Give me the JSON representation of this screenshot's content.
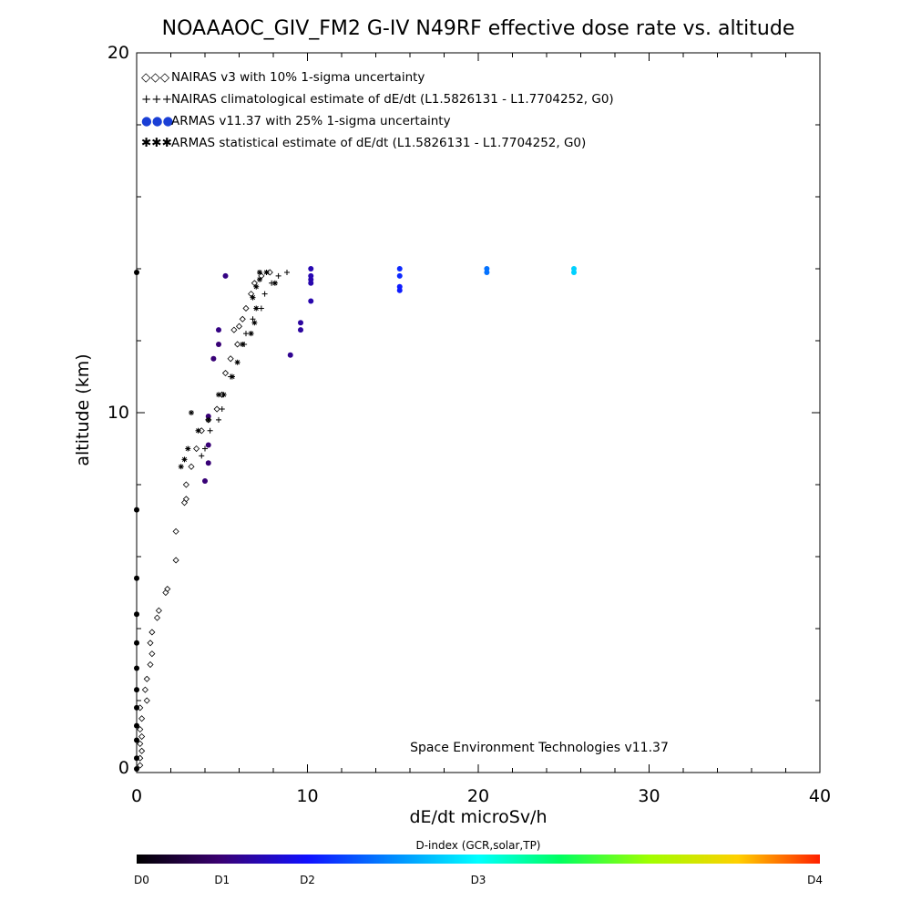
{
  "chart_data": {
    "type": "scatter",
    "title": "NOAAAOC_GIV_FM2 G-IV   N49RF  effective dose rate vs. altitude",
    "xlabel": "dE/dt microSv/h",
    "ylabel": "altitude (km)",
    "xlim": [
      0,
      40
    ],
    "ylim": [
      0,
      20
    ],
    "x_ticks": [
      "0",
      "10",
      "20",
      "30",
      "40"
    ],
    "y_ticks": [
      "0",
      "10",
      "20"
    ],
    "credit": "Space Environment Technologies v11.37",
    "legend": [
      {
        "symbol": "◇◇◇",
        "label": "NAIRAS v3 with 10% 1-sigma uncertainty"
      },
      {
        "symbol": "+++",
        "label": "NAIRAS climatological estimate of dE/dt (L1.5826131 - L1.7704252, G0)"
      },
      {
        "symbol": "●●●",
        "label": "ARMAS v11.37 with 25% 1-sigma uncertainty"
      },
      {
        "symbol": "✱✱✱",
        "label": "ARMAS statistical estimate of dE/dt (L1.5826131 - L1.7704252, G0)"
      }
    ],
    "colorbar": {
      "title": "D-index (GCR,solar,TP)",
      "labels": [
        {
          "text": "D0",
          "value": 0
        },
        {
          "text": "D1",
          "value": 0.5
        },
        {
          "text": "D2",
          "value": 1.0
        },
        {
          "text": "D3",
          "value": 2.0
        },
        {
          "text": "D4",
          "value": 4.0
        }
      ]
    },
    "series": [
      {
        "marker": "diamond",
        "points": [
          [
            0.2,
            0.2
          ],
          [
            0.2,
            0.4
          ],
          [
            0.3,
            0.6
          ],
          [
            0.2,
            0.8
          ],
          [
            0.3,
            1.0
          ],
          [
            0.2,
            1.2
          ],
          [
            0.3,
            1.5
          ],
          [
            0.2,
            1.8
          ],
          [
            0.6,
            2.0
          ],
          [
            0.5,
            2.3
          ],
          [
            0.6,
            2.6
          ],
          [
            0.8,
            3.0
          ],
          [
            0.9,
            3.3
          ],
          [
            0.8,
            3.6
          ],
          [
            0.9,
            3.9
          ],
          [
            1.2,
            4.3
          ],
          [
            1.3,
            4.5
          ],
          [
            1.7,
            5.0
          ],
          [
            1.8,
            5.1
          ],
          [
            2.3,
            5.9
          ],
          [
            2.3,
            6.7
          ],
          [
            2.8,
            7.5
          ],
          [
            2.9,
            7.6
          ],
          [
            2.9,
            8.0
          ],
          [
            3.2,
            8.5
          ],
          [
            3.5,
            9.0
          ],
          [
            3.8,
            9.5
          ],
          [
            4.2,
            9.8
          ],
          [
            4.7,
            10.1
          ],
          [
            5.0,
            10.5
          ],
          [
            5.2,
            11.1
          ],
          [
            5.5,
            11.5
          ],
          [
            5.9,
            11.9
          ],
          [
            5.7,
            12.3
          ],
          [
            6.0,
            12.4
          ],
          [
            6.2,
            12.6
          ],
          [
            6.4,
            12.9
          ],
          [
            6.7,
            13.3
          ],
          [
            6.9,
            13.6
          ],
          [
            7.3,
            13.8
          ],
          [
            7.8,
            13.9
          ]
        ]
      },
      {
        "marker": "plus",
        "points": [
          [
            3.8,
            8.8
          ],
          [
            4.0,
            9.0
          ],
          [
            4.3,
            9.5
          ],
          [
            4.8,
            9.8
          ],
          [
            5.0,
            10.1
          ],
          [
            5.5,
            11.0
          ],
          [
            6.3,
            11.9
          ],
          [
            6.4,
            12.2
          ],
          [
            6.8,
            12.6
          ],
          [
            7.3,
            12.9
          ],
          [
            7.5,
            13.3
          ],
          [
            7.9,
            13.6
          ],
          [
            8.3,
            13.8
          ],
          [
            8.8,
            13.9
          ]
        ]
      },
      {
        "marker": "circle",
        "points": [
          [
            0,
            13.9
          ],
          [
            0,
            7.3
          ],
          [
            0,
            5.4
          ],
          [
            0,
            4.4
          ],
          [
            0,
            3.6
          ],
          [
            0,
            2.9
          ],
          [
            0,
            2.3
          ],
          [
            0,
            1.8
          ],
          [
            0,
            1.3
          ],
          [
            0,
            0.9
          ],
          [
            0,
            0.4
          ],
          [
            0,
            0.1
          ],
          [
            4.0,
            8.1
          ],
          [
            4.2,
            8.6
          ],
          [
            4.2,
            9.1
          ],
          [
            4.2,
            9.9
          ],
          [
            4.5,
            11.5
          ],
          [
            4.8,
            11.9
          ],
          [
            4.8,
            12.3
          ],
          [
            5.2,
            13.8
          ],
          [
            9.0,
            11.6
          ],
          [
            9.6,
            12.3
          ],
          [
            9.6,
            12.5
          ],
          [
            10.2,
            13.1
          ],
          [
            10.2,
            13.6
          ],
          [
            10.2,
            13.7
          ],
          [
            10.2,
            13.8
          ],
          [
            10.2,
            14.0
          ],
          [
            15.4,
            13.4
          ],
          [
            15.4,
            13.5
          ],
          [
            15.4,
            13.8
          ],
          [
            15.4,
            14.0
          ],
          [
            20.5,
            13.9
          ],
          [
            20.5,
            14.0
          ],
          [
            25.6,
            13.9
          ],
          [
            25.6,
            14.0
          ]
        ],
        "d_index": [
          0,
          0,
          0,
          0,
          0,
          0,
          0,
          0,
          0,
          0,
          0,
          0,
          0.5,
          0.5,
          0.5,
          0.5,
          0.5,
          0.5,
          0.55,
          0.55,
          0.6,
          0.65,
          0.65,
          0.7,
          0.7,
          0.7,
          0.72,
          0.72,
          1.05,
          1.05,
          1.1,
          1.1,
          1.4,
          1.4,
          1.8,
          1.8
        ]
      },
      {
        "marker": "asterisk",
        "points": [
          [
            2.6,
            8.5
          ],
          [
            2.8,
            8.7
          ],
          [
            3.0,
            9.0
          ],
          [
            3.6,
            9.5
          ],
          [
            3.2,
            10.0
          ],
          [
            4.2,
            9.8
          ],
          [
            4.8,
            10.5
          ],
          [
            5.1,
            10.5
          ],
          [
            5.6,
            11.0
          ],
          [
            5.9,
            11.4
          ],
          [
            6.2,
            11.9
          ],
          [
            6.7,
            12.2
          ],
          [
            6.9,
            12.5
          ],
          [
            7.0,
            12.9
          ],
          [
            6.8,
            13.2
          ],
          [
            7.0,
            13.5
          ],
          [
            7.2,
            13.7
          ],
          [
            7.2,
            13.9
          ],
          [
            7.6,
            13.9
          ],
          [
            8.1,
            13.6
          ]
        ]
      }
    ]
  }
}
